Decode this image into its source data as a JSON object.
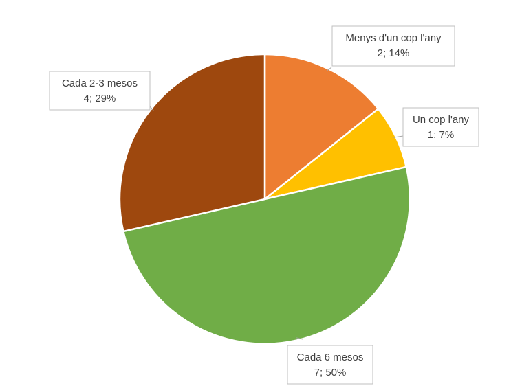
{
  "chart_data": {
    "type": "pie",
    "title": "",
    "slices": [
      {
        "category": "Menys d'un cop l'any",
        "value": 2,
        "percent": "14%",
        "label_line1": "Menys d'un cop l'any",
        "label_line2": "2; 14%",
        "color": "#ED7D31"
      },
      {
        "category": "Un cop l'any",
        "value": 1,
        "percent": "7%",
        "label_line1": "Un cop l'any",
        "label_line2": "1; 7%",
        "color": "#FFC000"
      },
      {
        "category": "Cada 6 mesos",
        "value": 7,
        "percent": "50%",
        "label_line1": "Cada 6 mesos",
        "label_line2": "7; 50%",
        "color": "#70AD47"
      },
      {
        "category": "Cada 2-3 mesos",
        "value": 4,
        "percent": "29%",
        "label_line1": "Cada 2-3 mesos",
        "label_line2": "4; 29%",
        "color": "#9E480E"
      }
    ]
  }
}
